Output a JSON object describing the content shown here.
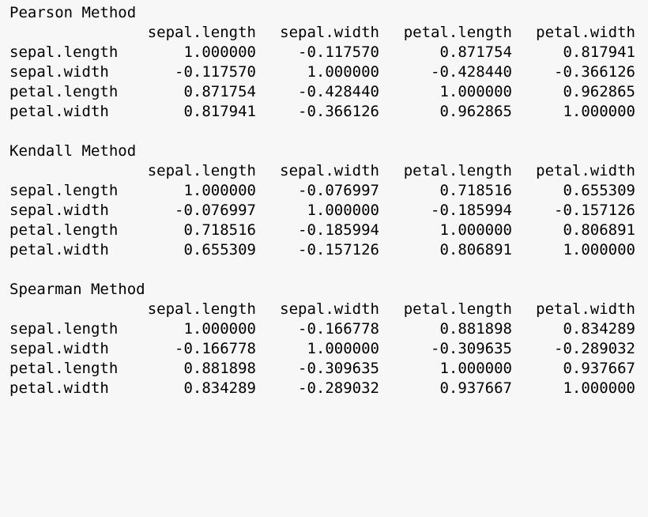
{
  "matrices": [
    {
      "title": "Pearson Method",
      "columns": [
        "sepal.length",
        "sepal.width",
        "petal.length",
        "petal.width"
      ],
      "rows": [
        {
          "label": "sepal.length",
          "values": [
            "1.000000",
            "-0.117570",
            "0.871754",
            "0.817941"
          ]
        },
        {
          "label": "sepal.width",
          "values": [
            "-0.117570",
            "1.000000",
            "-0.428440",
            "-0.366126"
          ]
        },
        {
          "label": "petal.length",
          "values": [
            "0.871754",
            "-0.428440",
            "1.000000",
            "0.962865"
          ]
        },
        {
          "label": "petal.width",
          "values": [
            "0.817941",
            "-0.366126",
            "0.962865",
            "1.000000"
          ]
        }
      ]
    },
    {
      "title": "Kendall Method",
      "columns": [
        "sepal.length",
        "sepal.width",
        "petal.length",
        "petal.width"
      ],
      "rows": [
        {
          "label": "sepal.length",
          "values": [
            "1.000000",
            "-0.076997",
            "0.718516",
            "0.655309"
          ]
        },
        {
          "label": "sepal.width",
          "values": [
            "-0.076997",
            "1.000000",
            "-0.185994",
            "-0.157126"
          ]
        },
        {
          "label": "petal.length",
          "values": [
            "0.718516",
            "-0.185994",
            "1.000000",
            "0.806891"
          ]
        },
        {
          "label": "petal.width",
          "values": [
            "0.655309",
            "-0.157126",
            "0.806891",
            "1.000000"
          ]
        }
      ]
    },
    {
      "title": "Spearman Method",
      "columns": [
        "sepal.length",
        "sepal.width",
        "petal.length",
        "petal.width"
      ],
      "rows": [
        {
          "label": "sepal.length",
          "values": [
            "1.000000",
            "-0.166778",
            "0.881898",
            "0.834289"
          ]
        },
        {
          "label": "sepal.width",
          "values": [
            "-0.166778",
            "1.000000",
            "-0.309635",
            "-0.289032"
          ]
        },
        {
          "label": "petal.length",
          "values": [
            "0.881898",
            "-0.309635",
            "1.000000",
            "0.937667"
          ]
        },
        {
          "label": "petal.width",
          "values": [
            "0.834289",
            "-0.289032",
            "0.937667",
            "1.000000"
          ]
        }
      ]
    }
  ]
}
